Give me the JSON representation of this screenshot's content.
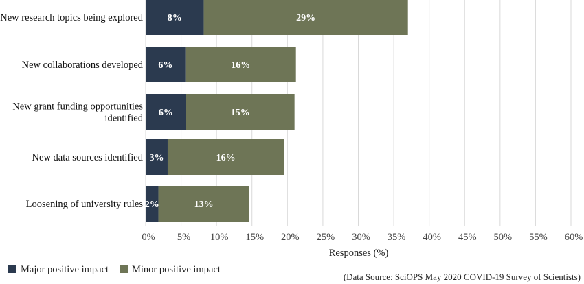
{
  "chart_data": {
    "type": "bar",
    "orientation": "horizontal",
    "stacked": true,
    "categories": [
      [
        "New research topics being explored"
      ],
      [
        "New collaborations developed"
      ],
      [
        "New grant funding opportunities",
        "identified"
      ],
      [
        "New data sources identified"
      ],
      [
        "Loosening of university rules"
      ]
    ],
    "series": [
      {
        "name": "Major positive impact",
        "color": "#2b3a4f",
        "values": [
          8,
          6,
          6,
          3,
          2
        ],
        "labels": [
          "8%",
          "6%",
          "6%",
          "3%",
          "2%"
        ],
        "bar_values": [
          8.2,
          5.6,
          5.7,
          3.1,
          1.8
        ]
      },
      {
        "name": "Minor positive impact",
        "color": "#6e7556",
        "values": [
          29,
          16,
          15,
          16,
          13
        ],
        "labels": [
          "29%",
          "16%",
          "15%",
          "16%",
          "13%"
        ],
        "bar_values": [
          28.8,
          15.6,
          15.3,
          16.4,
          12.8
        ]
      }
    ],
    "xlabel": "Responses (%)",
    "xlim": [
      0,
      60
    ],
    "xticks": [
      "0%",
      "5%",
      "10%",
      "15%",
      "20%",
      "25%",
      "30%",
      "35%",
      "40%",
      "45%",
      "50%",
      "55%",
      "60%"
    ],
    "grid": "vertical",
    "legend_position": "bottom-left",
    "source": "(Data Source: SciOPS May 2020 COVID-19 Survey of Scientists)"
  }
}
